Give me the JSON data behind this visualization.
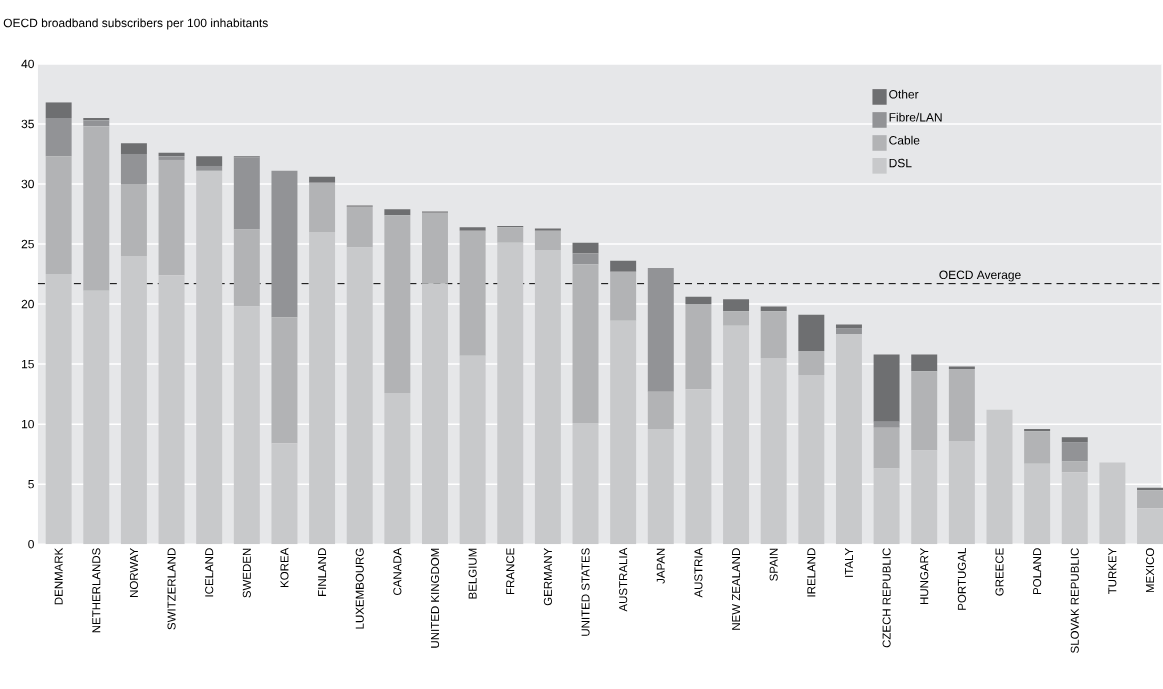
{
  "chart_data": {
    "type": "bar",
    "stacked": true,
    "title": "OECD broadband subscribers per 100 inhabitants",
    "categories": [
      "DENMARK",
      "NETHERLANDS",
      "NORWAY",
      "SWITZERLAND",
      "ICELAND",
      "SWEDEN",
      "KOREA",
      "FINLAND",
      "LUXEMBOURG",
      "CANADA",
      "UNITED KINGDOM",
      "BELGIUM",
      "FRANCE",
      "GERMANY",
      "UNITED STATES",
      "AUSTRALIA",
      "JAPAN",
      "AUSTRIA",
      "NEW ZEALAND",
      "SPAIN",
      "IRELAND",
      "ITALY",
      "CZECH REPUBLIC",
      "HUNGARY",
      "PORTUGAL",
      "GREECE",
      "POLAND",
      "SLOVAK REPUBLIC",
      "TURKEY",
      "MEXICO"
    ],
    "series": [
      {
        "name": "DSL",
        "color": "#c8c9cb",
        "values": [
          22.5,
          21.1,
          24.0,
          22.4,
          31.1,
          19.8,
          8.4,
          26.0,
          24.7,
          12.6,
          21.7,
          15.7,
          25.1,
          24.5,
          10.1,
          18.6,
          9.6,
          12.9,
          18.2,
          15.5,
          14.1,
          17.5,
          6.3,
          7.8,
          8.6,
          11.2,
          6.7,
          6.0,
          6.8,
          3.0
        ]
      },
      {
        "name": "Cable",
        "color": "#b2b3b5",
        "values": [
          9.8,
          13.7,
          6.0,
          9.6,
          0,
          6.4,
          10.5,
          4.1,
          3.4,
          14.8,
          5.9,
          10.4,
          1.3,
          1.6,
          13.2,
          4.1,
          3.1,
          7.1,
          1.2,
          3.9,
          2.0,
          0,
          3.4,
          6.6,
          6.0,
          0,
          2.7,
          0.9,
          0,
          1.5
        ]
      },
      {
        "name": "Fibre/LAN",
        "color": "#929396",
        "values": [
          3.2,
          0.5,
          2.5,
          0.3,
          0.4,
          6.0,
          12.2,
          0,
          null,
          0,
          0,
          0,
          0,
          0,
          0.9,
          0,
          10.3,
          0,
          0,
          0,
          null,
          0.5,
          0.5,
          0,
          0,
          0,
          0,
          1.6,
          0,
          0
        ]
      },
      {
        "name": "Other",
        "color": "#6e6f71",
        "values": [
          1.3,
          0.2,
          0.9,
          0.3,
          0.8,
          0.1,
          0,
          0.5,
          0.1,
          0.5,
          0.1,
          0.3,
          0.1,
          0.2,
          0.9,
          0.9,
          0,
          0.6,
          1.0,
          0.4,
          3.0,
          0.3,
          5.6,
          1.4,
          0.2,
          0,
          0.2,
          0.4,
          0,
          0.2
        ]
      }
    ],
    "ylim": [
      0,
      40
    ],
    "yticks": [
      0,
      5,
      10,
      15,
      20,
      25,
      30,
      35,
      40
    ],
    "grid": "y",
    "legend": "top right",
    "ref_lines": [
      {
        "axis": "y",
        "value": 21.7,
        "label": "OECD Average",
        "line_style": "dashed",
        "color": "#000000"
      }
    ]
  }
}
